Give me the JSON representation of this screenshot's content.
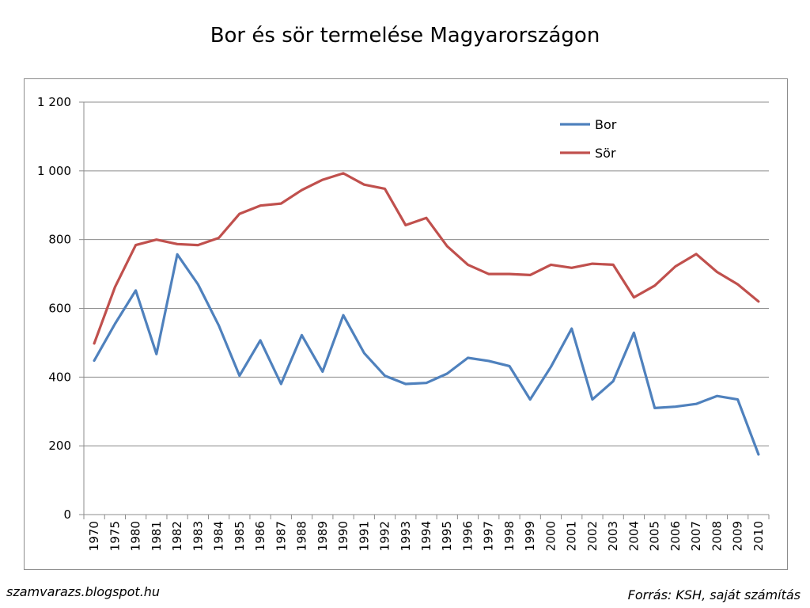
{
  "chart_data": {
    "type": "line",
    "title": "Bor és sör termelése Magyarországon",
    "categories": [
      "1970",
      "1975",
      "1980",
      "1981",
      "1982",
      "1983",
      "1984",
      "1985",
      "1986",
      "1987",
      "1988",
      "1989",
      "1990",
      "1991",
      "1992",
      "1993",
      "1994",
      "1995",
      "1996",
      "1997",
      "1998",
      "1999",
      "2000",
      "2001",
      "2002",
      "2003",
      "2004",
      "2005",
      "2006",
      "2007",
      "2008",
      "2009",
      "2010"
    ],
    "series": [
      {
        "name": "Bor",
        "color": "#4f81bd",
        "values": [
          448,
          555,
          652,
          467,
          757,
          670,
          550,
          404,
          507,
          380,
          522,
          416,
          580,
          470,
          404,
          380,
          383,
          410,
          456,
          447,
          432,
          335,
          430,
          541,
          335,
          388,
          529,
          310,
          314,
          322,
          345,
          335,
          175
        ]
      },
      {
        "name": "Sör",
        "color": "#c0504d",
        "values": [
          498,
          662,
          784,
          800,
          787,
          784,
          805,
          875,
          899,
          905,
          944,
          974,
          993,
          960,
          948,
          842,
          863,
          781,
          727,
          700,
          700,
          697,
          727,
          718,
          730,
          727,
          632,
          666,
          722,
          758,
          706,
          670,
          620
        ]
      }
    ],
    "ylim": [
      0,
      1200
    ],
    "yticks": [
      0,
      200,
      400,
      600,
      800,
      1000,
      1200
    ],
    "ytick_labels": [
      "0",
      "200",
      "400",
      "600",
      "800",
      "1 000",
      "1 200"
    ],
    "grid": true,
    "legend_position": "top-right",
    "xlabel": "",
    "ylabel": ""
  },
  "footer": {
    "left": "szamvarazs.blogspot.hu",
    "right": "Forrás: KSH, saját számítás"
  }
}
